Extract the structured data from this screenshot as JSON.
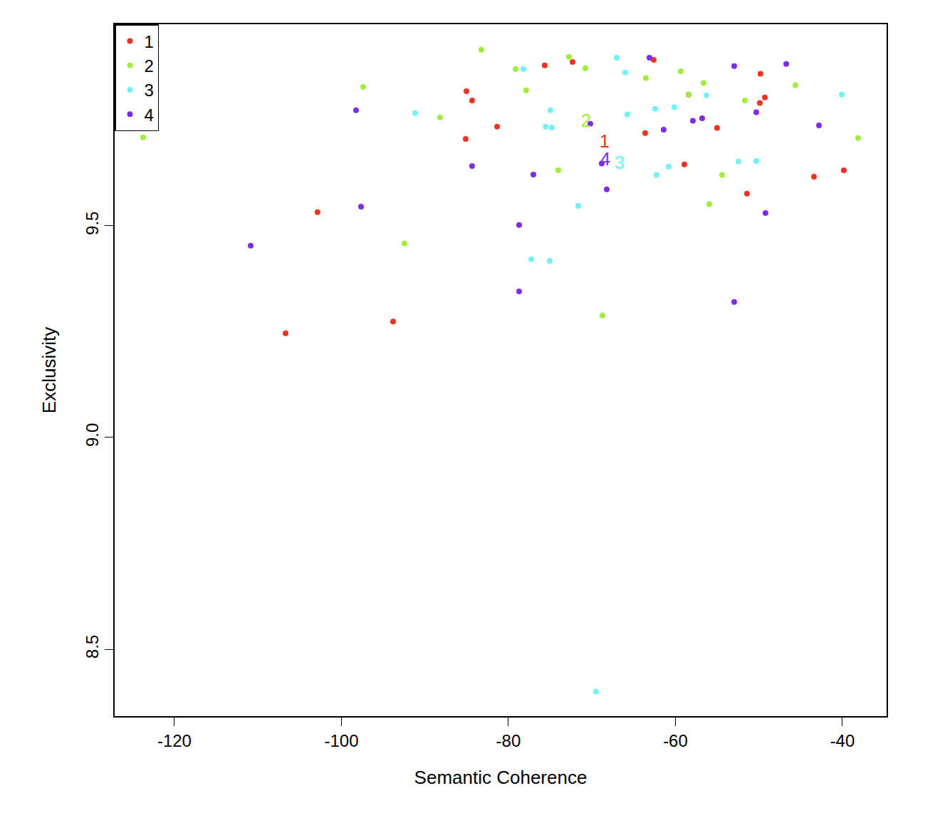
{
  "chart_data": {
    "type": "scatter",
    "x_label": "Semantic Coherence",
    "y_label": "Exclusivity",
    "xlim": [
      -127.16,
      -34.71
    ],
    "ylim": [
      8.342,
      9.976
    ],
    "xticks": [
      -120,
      -100,
      -80,
      -60,
      -40
    ],
    "yticks": [
      {
        "value": 8.5,
        "label": "8.5"
      },
      {
        "value": 9,
        "label": "9.0"
      },
      {
        "value": 9.5,
        "label": "9.5"
      }
    ],
    "grid": false,
    "legend": "top-left",
    "marker": "circle",
    "series": [
      {
        "name": "1",
        "color": "#ee3322",
        "x": [
          -75.65,
          -72.32,
          -62.6,
          -85.03,
          -84.35,
          -85.12,
          -81.36,
          -63.62,
          -58.93,
          -49.81,
          -49.89,
          -49.29,
          -55.01,
          -43.41,
          -39.83,
          -51.43,
          -102.86,
          -106.69,
          -93.82,
          -58.42
        ],
        "y": [
          9.879,
          9.887,
          9.892,
          9.818,
          9.796,
          9.705,
          9.734,
          9.719,
          9.645,
          9.859,
          9.79,
          9.803,
          9.731,
          9.616,
          9.631,
          9.576,
          9.532,
          9.246,
          9.274,
          9.81
        ],
        "average_x": -68.48,
        "average_y": 9.695
      },
      {
        "name": "2",
        "color": "#a0ee3a",
        "x": [
          -83.24,
          -72.75,
          -79.15,
          -70.79,
          -77.87,
          -97.4,
          -88.19,
          -63.54,
          -59.36,
          -56.63,
          -45.63,
          -51.68,
          -38.12,
          -74.03,
          -54.41,
          -55.95,
          -92.45,
          -68.74,
          -123.75,
          -58.42
        ],
        "y": [
          9.916,
          9.899,
          9.87,
          9.872,
          9.82,
          9.828,
          9.756,
          9.849,
          9.865,
          9.837,
          9.832,
          9.796,
          9.707,
          9.631,
          9.62,
          9.551,
          9.458,
          9.288,
          9.709,
          9.81
        ],
        "average_x": -70.7,
        "average_y": 9.744
      },
      {
        "name": "3",
        "color": "#6ff3f3",
        "x": [
          -67.03,
          -66.01,
          -78.21,
          -91.17,
          -74.97,
          -75.56,
          -74.8,
          -65.76,
          -62.43,
          -60.13,
          -56.29,
          -40.08,
          -60.81,
          -62.26,
          -52.45,
          -50.32,
          -71.64,
          -77.27,
          -75.05,
          -69.51
        ],
        "y": [
          9.897,
          9.862,
          9.87,
          9.766,
          9.773,
          9.734,
          9.732,
          9.763,
          9.776,
          9.78,
          9.808,
          9.81,
          9.64,
          9.62,
          9.652,
          9.653,
          9.547,
          9.421,
          9.417,
          8.4
        ],
        "average_x": -66.69,
        "average_y": 9.645
      },
      {
        "name": "4",
        "color": "#7b2cf0",
        "x": [
          -63.11,
          -52.96,
          -46.73,
          -98.25,
          -50.32,
          -56.8,
          -57.91,
          -61.41,
          -42.81,
          -70.19,
          -84.35,
          -77.01,
          -68.83,
          -68.23,
          -97.65,
          -49.21,
          -78.72,
          -110.87,
          -78.72,
          -52.96
        ],
        "y": [
          9.897,
          9.877,
          9.882,
          9.773,
          9.768,
          9.754,
          9.748,
          9.727,
          9.737,
          9.741,
          9.641,
          9.621,
          9.647,
          9.586,
          9.545,
          9.53,
          9.502,
          9.453,
          9.345,
          9.32
        ],
        "average_x": -68.4,
        "average_y": 9.653
      }
    ]
  }
}
